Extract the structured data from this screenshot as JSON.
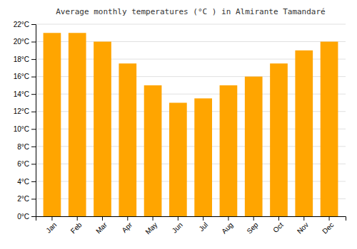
{
  "chart_data": {
    "type": "bar",
    "title": "Average monthly temperatures (°C ) in Almirante Tamandaré",
    "categories": [
      "Jan",
      "Feb",
      "Mar",
      "Apr",
      "May",
      "Jun",
      "Jul",
      "Aug",
      "Sep",
      "Oct",
      "Nov",
      "Dec"
    ],
    "values": [
      21.0,
      21.0,
      20.0,
      17.5,
      15.0,
      13.0,
      13.5,
      15.0,
      16.0,
      17.5,
      19.0,
      20.0
    ],
    "color": "#FFA500",
    "ylim": [
      0,
      22
    ],
    "yticks": [
      {
        "value": 0,
        "label": "0°C"
      },
      {
        "value": 2,
        "label": "2°C"
      },
      {
        "value": 4,
        "label": "4°C"
      },
      {
        "value": 6,
        "label": "6°C"
      },
      {
        "value": 8,
        "label": "8°C"
      },
      {
        "value": 10,
        "label": "10°C"
      },
      {
        "value": 12,
        "label": "12°C"
      },
      {
        "value": 14,
        "label": "14°C"
      },
      {
        "value": 16,
        "label": "16°C"
      },
      {
        "value": 18,
        "label": "18°C"
      },
      {
        "value": 20,
        "label": "20°C"
      },
      {
        "value": 22,
        "label": "22°C"
      }
    ],
    "grid": true
  }
}
